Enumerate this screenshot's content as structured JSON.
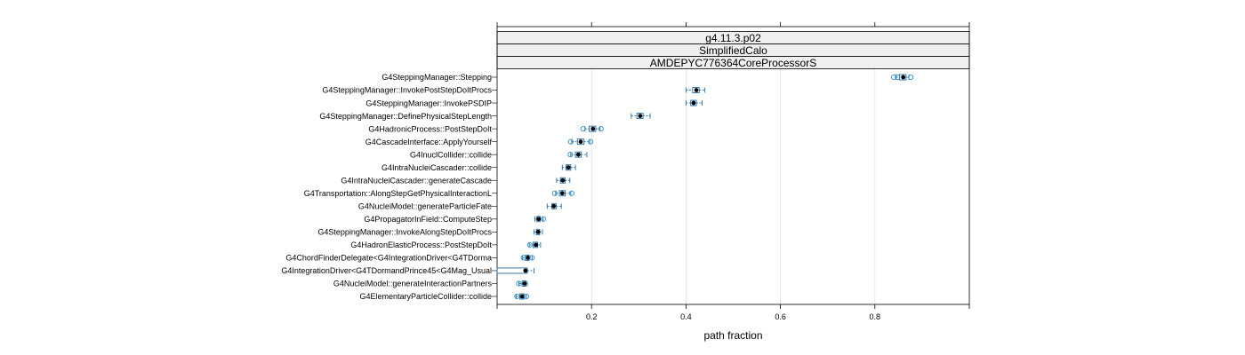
{
  "chart_data": {
    "type": "boxplot",
    "strips": [
      "g4.11.3.p02",
      "SimplifiedCalo",
      "AMDEPYC776364CoreProcessorS"
    ],
    "xlabel": "path fraction",
    "xlim": [
      0.0,
      1.0
    ],
    "x_ticks": [
      0.2,
      0.4,
      0.6,
      0.8
    ],
    "x_tick_labels": [
      "0.2",
      "0.4",
      "0.6",
      "0.8"
    ],
    "grid": true,
    "colors": {
      "box": "#1f6fa8",
      "outlier": "#2b8fc8",
      "median": "#000000",
      "grid": "#e6e6e6",
      "strip": "#efefef"
    },
    "categories": [
      "G4SteppingManager::Stepping",
      "G4SteppingManager::InvokePostStepDoItProcs",
      "G4SteppingManager::InvokePSDIP",
      "G4SteppingManager::DefinePhysicalStepLength",
      "G4HadronicProcess::PostStepDoIt",
      "G4CascadeInterface::ApplyYourself",
      "G4InuclCollider::collide",
      "G4IntraNucleiCascader::collide",
      "G4IntraNucleiCascader::generateCascade",
      "G4Transportation::AlongStepGetPhysicalInteractionL",
      "G4NucleiModel::generateParticleFate",
      "G4PropagatorInField::ComputeStep",
      "G4SteppingManager::InvokeAlongStepDoItProcs",
      "G4HadronElasticProcess::PostStepDoIt",
      "G4ChordFinderDelegate<G4IntegrationDriver<G4TDorma",
      "G4IntegrationDriver<G4TDormandPrince45<G4Mag_Usual",
      "G4NucleiModel::generateInteractionPartners",
      "G4ElementaryParticleCollider::collide"
    ],
    "boxes": [
      {
        "min": 0.845,
        "q1": 0.852,
        "median": 0.86,
        "q3": 0.866,
        "max": 0.872,
        "outliers": [
          0.84,
          0.848,
          0.876
        ]
      },
      {
        "min": 0.4,
        "q1": 0.414,
        "median": 0.422,
        "q3": 0.428,
        "max": 0.44,
        "outliers": []
      },
      {
        "min": 0.4,
        "q1": 0.41,
        "median": 0.416,
        "q3": 0.422,
        "max": 0.434,
        "outliers": []
      },
      {
        "min": 0.284,
        "q1": 0.296,
        "median": 0.303,
        "q3": 0.309,
        "max": 0.324,
        "outliers": []
      },
      {
        "min": 0.186,
        "q1": 0.195,
        "median": 0.203,
        "q3": 0.209,
        "max": 0.218,
        "outliers": [
          0.182,
          0.22
        ]
      },
      {
        "min": 0.158,
        "q1": 0.17,
        "median": 0.177,
        "q3": 0.184,
        "max": 0.196,
        "outliers": [
          0.156,
          0.198
        ]
      },
      {
        "min": 0.156,
        "q1": 0.166,
        "median": 0.172,
        "q3": 0.178,
        "max": 0.19,
        "outliers": [
          0.155
        ]
      },
      {
        "min": 0.138,
        "q1": 0.146,
        "median": 0.151,
        "q3": 0.156,
        "max": 0.166,
        "outliers": []
      },
      {
        "min": 0.126,
        "q1": 0.134,
        "median": 0.139,
        "q3": 0.144,
        "max": 0.154,
        "outliers": []
      },
      {
        "min": 0.124,
        "q1": 0.132,
        "median": 0.138,
        "q3": 0.144,
        "max": 0.156,
        "outliers": [
          0.122,
          0.158
        ]
      },
      {
        "min": 0.106,
        "q1": 0.116,
        "median": 0.12,
        "q3": 0.125,
        "max": 0.136,
        "outliers": []
      },
      {
        "min": 0.08,
        "q1": 0.084,
        "median": 0.088,
        "q3": 0.091,
        "max": 0.097,
        "outliers": [
          0.098
        ]
      },
      {
        "min": 0.078,
        "q1": 0.083,
        "median": 0.087,
        "q3": 0.09,
        "max": 0.096,
        "outliers": []
      },
      {
        "min": 0.068,
        "q1": 0.076,
        "median": 0.082,
        "q3": 0.086,
        "max": 0.092,
        "outliers": [
          0.069
        ]
      },
      {
        "min": 0.054,
        "q1": 0.06,
        "median": 0.065,
        "q3": 0.068,
        "max": 0.074,
        "outliers": [
          0.056,
          0.074
        ]
      },
      {
        "min": 0.0,
        "q1": 0.0,
        "median": 0.06,
        "q3": 0.064,
        "max": 0.078,
        "outliers": []
      },
      {
        "min": 0.046,
        "q1": 0.053,
        "median": 0.058,
        "q3": 0.061,
        "max": 0.064,
        "outliers": [
          0.046
        ]
      },
      {
        "min": 0.04,
        "q1": 0.048,
        "median": 0.053,
        "q3": 0.057,
        "max": 0.062,
        "outliers": [
          0.042,
          0.062
        ]
      }
    ]
  }
}
